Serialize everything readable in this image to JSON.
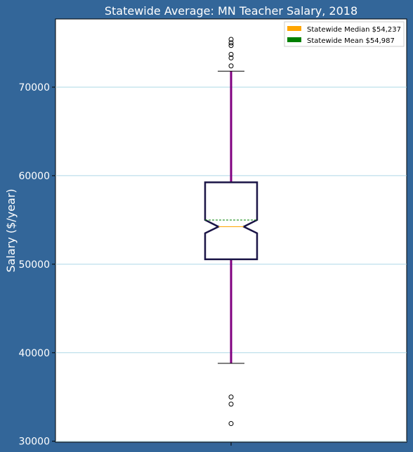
{
  "chart_data": {
    "type": "box",
    "title": "Statewide Average: MN Teacher Salary, 2018",
    "xlabel": "",
    "ylabel": "Salary ($/year)",
    "ylim": [
      29900,
      77700
    ],
    "yticks": [
      30000,
      40000,
      50000,
      60000,
      70000
    ],
    "grid": "horizontal",
    "legend_position": "top-right",
    "legend": [
      {
        "label": "Statewide Median $54,237",
        "color": "#ffa500"
      },
      {
        "label": "Statewide Mean $54,987",
        "color": "#008000"
      }
    ],
    "box": {
      "whisker_low": 38800,
      "q1": 50550,
      "median": 54237,
      "mean": 54987,
      "q3": 59250,
      "whisker_high": 71800,
      "notch_low": 53500,
      "notch_high": 55000
    },
    "outliers": [
      75400,
      75000,
      74700,
      73700,
      73300,
      72400,
      35000,
      34200,
      32000
    ],
    "colors": {
      "figure_background": "#336699",
      "plot_background": "#ffffff",
      "box_edge": "#1a1446",
      "whisker": "#800080",
      "median_line": "#ffa500",
      "mean_line": "#008000",
      "grid": "#add8e6"
    }
  }
}
